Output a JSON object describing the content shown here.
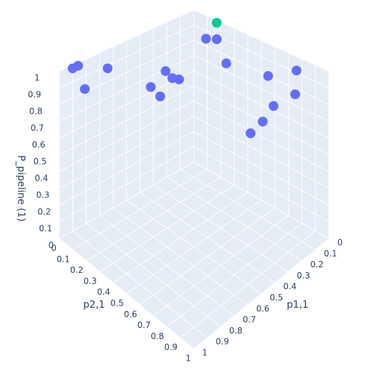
{
  "chart_data": {
    "type": "scatter3d",
    "xlabel": "p1,1",
    "ylabel": "p2,1",
    "zlabel": "P_pipeline (1)",
    "xlim": [
      0,
      1
    ],
    "ylim": [
      0,
      1
    ],
    "zlim": [
      0,
      1
    ],
    "xticks": [
      0,
      0.1,
      0.2,
      0.3,
      0.4,
      0.5,
      0.6,
      0.7,
      0.8,
      0.9,
      1
    ],
    "yticks": [
      0,
      0.1,
      0.2,
      0.3,
      0.4,
      0.5,
      0.6,
      0.7,
      0.8,
      0.9,
      1
    ],
    "zticks": [
      0,
      0.1,
      0.2,
      0.3,
      0.4,
      0.5,
      0.6,
      0.7,
      0.8,
      0.9,
      1
    ],
    "grid": true,
    "series": [
      {
        "color": "#636efa",
        "x": [
          0.9,
          0.87,
          0.82,
          0.65,
          0.5,
          0.4,
          0.45,
          0.4,
          0.35,
          0.05,
          0.05,
          0.1,
          0.1,
          0.05,
          0.1,
          0.2,
          0.3,
          0.35
        ],
        "y": [
          0,
          0.01,
          0.01,
          0.01,
          0.18,
          0.19,
          0.2,
          0.24,
          0.24,
          0.14,
          0.22,
          0.34,
          0.65,
          0.81,
          0.85,
          0.79,
          0.81,
          0.77
        ],
        "z": [
          0.98,
          0.99,
          0.83,
          0.89,
          0.8,
          0.86,
          0.73,
          0.84,
          0.81,
          0.89,
          0.92,
          0.84,
          0.89,
          0.96,
          0.86,
          0.82,
          0.79,
          0.73
        ]
      },
      {
        "color": "#00cc96",
        "x": [
          0.02
        ],
        "y": [
          0.19
        ],
        "z": [
          1
        ]
      }
    ]
  }
}
